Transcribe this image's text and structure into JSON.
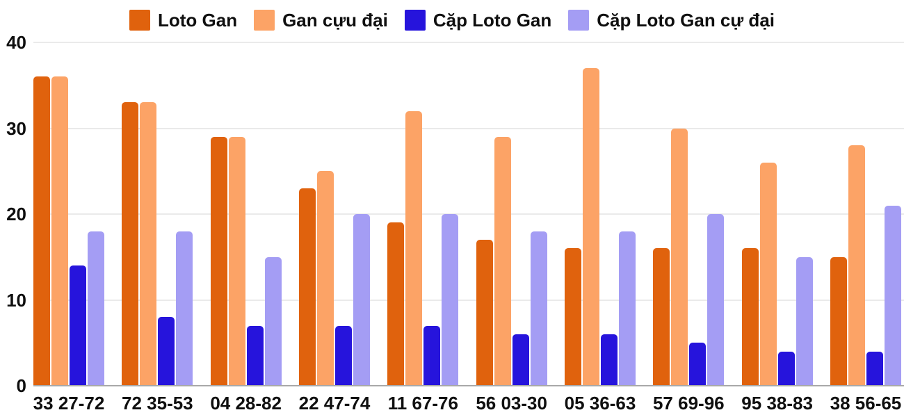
{
  "chart_data": {
    "type": "bar",
    "categories": [
      "33 27-72",
      "72 35-53",
      "04 28-82",
      "22 47-74",
      "11 67-76",
      "56 03-30",
      "05 36-63",
      "57 69-96",
      "95 38-83",
      "38 56-65"
    ],
    "series": [
      {
        "name": "Loto Gan",
        "color": "#E0620D",
        "values": [
          36,
          33,
          29,
          23,
          19,
          17,
          16,
          16,
          16,
          15
        ]
      },
      {
        "name": "Gan cựu đại",
        "color": "#FCA366",
        "values": [
          36,
          33,
          29,
          25,
          32,
          29,
          37,
          30,
          26,
          28
        ]
      },
      {
        "name": "Cặp Loto Gan",
        "color": "#2614DC",
        "values": [
          14,
          8,
          7,
          7,
          7,
          6,
          6,
          5,
          4,
          4
        ]
      },
      {
        "name": "Cặp Loto Gan cự đại",
        "color": "#A49DF4",
        "values": [
          18,
          18,
          15,
          20,
          20,
          18,
          18,
          20,
          15,
          21
        ]
      }
    ],
    "yticks": [
      0,
      10,
      20,
      30,
      40
    ],
    "ylim": [
      0,
      40
    ],
    "grid": true,
    "legend_position": "top-center"
  },
  "colors": {
    "background": "#FFFFFF",
    "text": "#0F0F0F",
    "gridline": "#EAEAEA",
    "axis_line": "#A8A8A8"
  }
}
